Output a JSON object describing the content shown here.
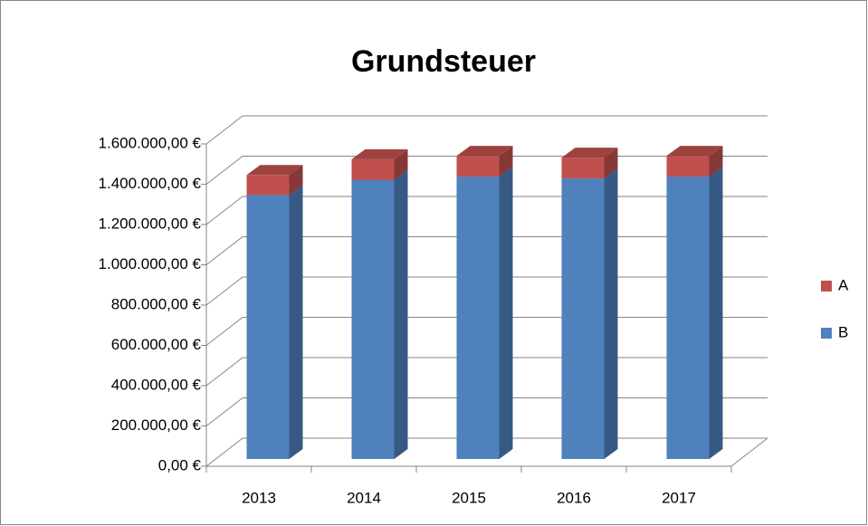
{
  "chart_data": {
    "type": "bar",
    "stacked": true,
    "three_d": true,
    "title": "Grundsteuer",
    "categories": [
      "2013",
      "2014",
      "2015",
      "2016",
      "2017"
    ],
    "series": [
      {
        "name": "A",
        "color": "#c0504d",
        "values": [
          100000,
          103000,
          103000,
          103000,
          103000
        ]
      },
      {
        "name": "B",
        "color": "#4f81bd",
        "values": [
          1310000,
          1385000,
          1402000,
          1393000,
          1402000
        ]
      }
    ],
    "ylim": [
      0,
      1600000
    ],
    "yticks": [
      {
        "value": 0,
        "label": "0,00 €"
      },
      {
        "value": 200000,
        "label": "200.000,00 €"
      },
      {
        "value": 400000,
        "label": "400.000,00 €"
      },
      {
        "value": 600000,
        "label": "600.000,00 €"
      },
      {
        "value": 800000,
        "label": "800.000,00 €"
      },
      {
        "value": 1000000,
        "label": "1.000.000,00 €"
      },
      {
        "value": 1200000,
        "label": "1.200.000,00 €"
      },
      {
        "value": 1400000,
        "label": "1.400.000,00 €"
      },
      {
        "value": 1600000,
        "label": "1.600.000,00 €"
      }
    ],
    "grid": true,
    "legend": "right"
  }
}
